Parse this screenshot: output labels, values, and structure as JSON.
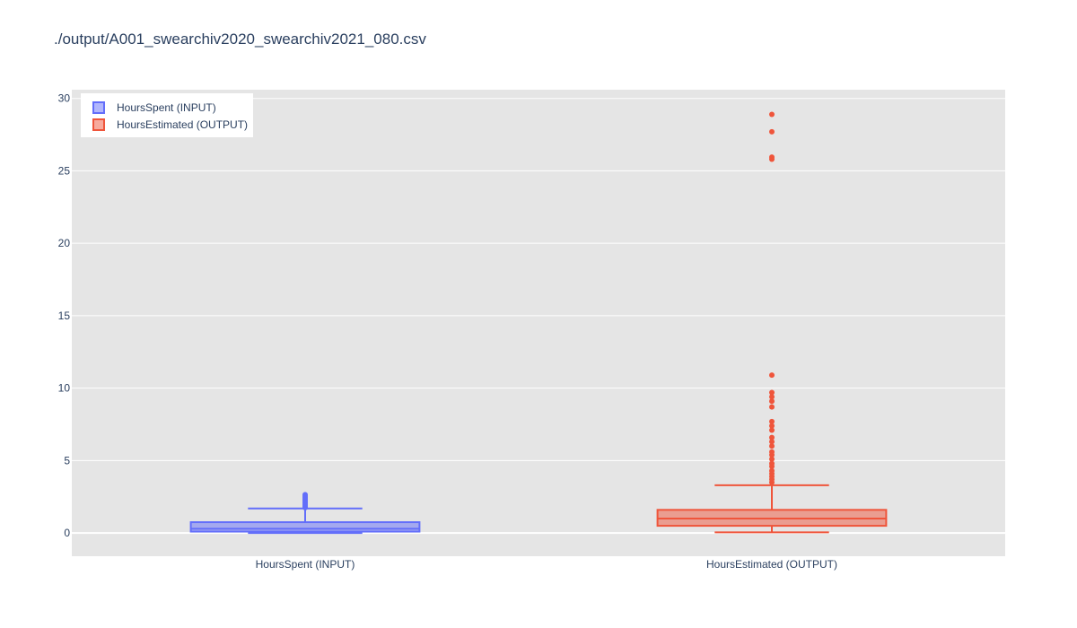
{
  "title": "./output/A001_swearchiv2020_swearchiv2021_080.csv",
  "chart_data": {
    "type": "box",
    "title": "./output/A001_swearchiv2020_swearchiv2021_080.csv",
    "xlabel": "",
    "ylabel": "",
    "ylim": [
      -1.6,
      30.6
    ],
    "yticks": [
      0,
      5,
      10,
      15,
      20,
      25,
      30
    ],
    "grid": true,
    "legend_position": "top-left",
    "categories": [
      "HoursSpent (INPUT)",
      "HoursEstimated (OUTPUT)"
    ],
    "series": [
      {
        "name": "HoursSpent (INPUT)",
        "color": "#636efa",
        "fill": "rgba(99,110,250,0.5)",
        "whisker_low": 0.0,
        "q1": 0.1,
        "median": 0.3,
        "q3": 0.75,
        "whisker_high": 1.7,
        "outliers": [
          1.75,
          1.85,
          1.95,
          2.05,
          2.15,
          2.25,
          2.35,
          2.45,
          2.55,
          2.65
        ]
      },
      {
        "name": "HoursEstimated (OUTPUT)",
        "color": "#ef553b",
        "fill": "rgba(239,85,59,0.5)",
        "whisker_low": 0.05,
        "q1": 0.5,
        "median": 1.0,
        "q3": 1.6,
        "whisker_high": 3.3,
        "outliers": [
          3.5,
          3.7,
          3.9,
          4.1,
          4.3,
          4.6,
          4.8,
          5.1,
          5.4,
          5.6,
          6.0,
          6.3,
          6.6,
          7.1,
          7.4,
          7.7,
          8.7,
          9.1,
          9.4,
          9.7,
          10.9,
          25.8,
          25.95,
          27.7,
          28.9
        ]
      }
    ]
  }
}
